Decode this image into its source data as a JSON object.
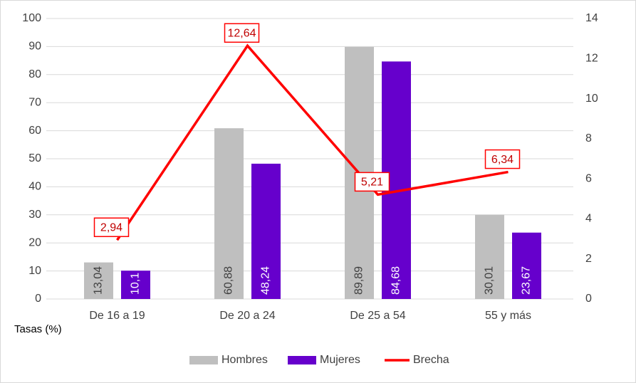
{
  "chart_data": {
    "type": "bar_line",
    "y_axis_label": "Tasas (%)",
    "categories": [
      "De 16 a 19",
      "De 20 a 24",
      "De 25 a 54",
      "55 y más"
    ],
    "series": [
      {
        "name": "Hombres",
        "type": "bar",
        "color": "#bfbfbf",
        "values": [
          13.04,
          60.88,
          89.89,
          30.01
        ],
        "value_labels": [
          "13,04",
          "60,88",
          "89,89",
          "30,01"
        ]
      },
      {
        "name": "Mujeres",
        "type": "bar",
        "color": "#6600cc",
        "values": [
          10.1,
          48.24,
          84.68,
          23.67
        ],
        "value_labels": [
          "10,1",
          "48,24",
          "84,68",
          "23,67"
        ]
      },
      {
        "name": "Brecha",
        "type": "line",
        "axis": "y2",
        "color": "#ff0000",
        "values": [
          2.94,
          12.64,
          5.21,
          6.34
        ],
        "value_labels": [
          "2,94",
          "12,64",
          "5,21",
          "6,34"
        ]
      }
    ],
    "ylim": [
      0,
      100
    ],
    "yticks": [
      0,
      10,
      20,
      30,
      40,
      50,
      60,
      70,
      80,
      90,
      100
    ],
    "y2lim": [
      0,
      14
    ],
    "y2ticks": [
      0,
      2,
      4,
      6,
      8,
      10,
      12,
      14
    ],
    "grid": true,
    "legend": "bottom"
  }
}
